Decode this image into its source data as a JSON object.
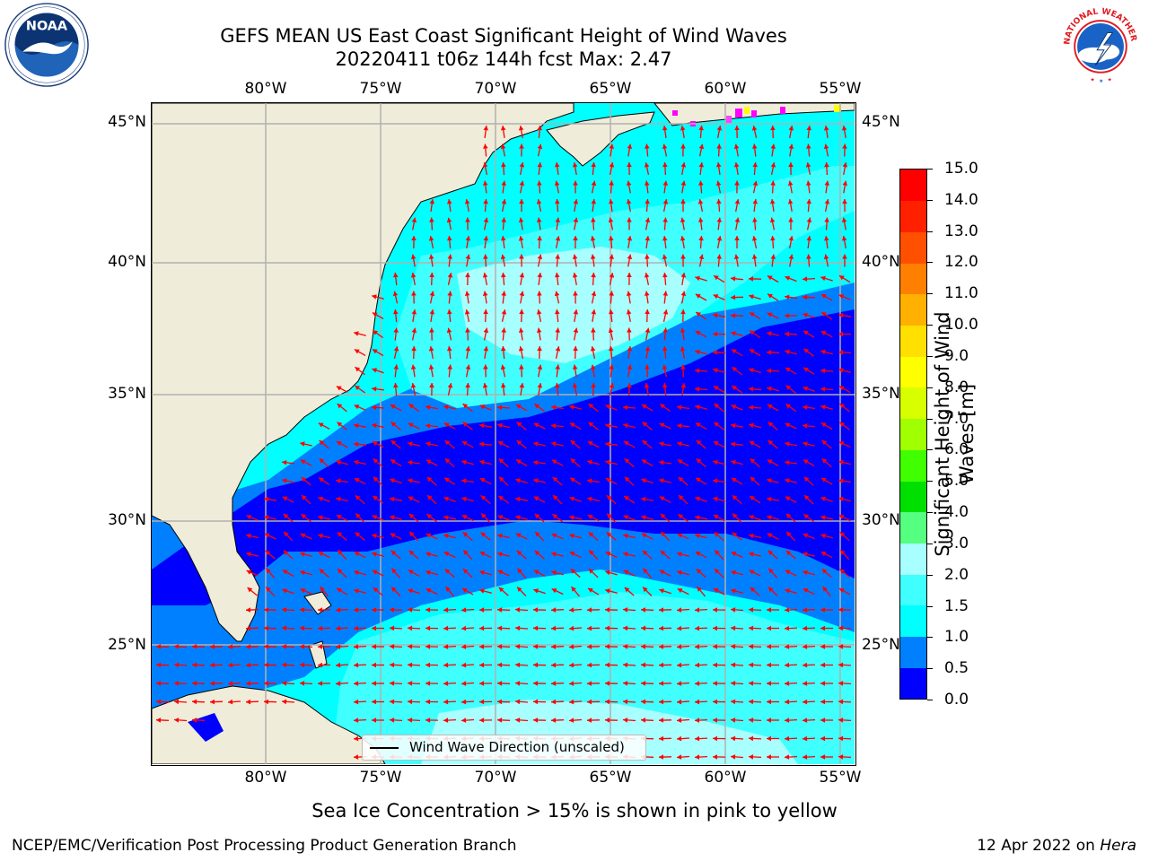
{
  "title": {
    "line1": "GEFS MEAN US East Coast Significant Height of Wind Waves",
    "line2": "20220411 t06z 144h fcst   Max: 2.47"
  },
  "map": {
    "lon_labels": [
      "80°W",
      "75°W",
      "70°W",
      "65°W",
      "60°W",
      "55°W"
    ],
    "lat_labels": [
      "45°N",
      "40°N",
      "35°N",
      "30°N",
      "25°N"
    ],
    "legend_label": "Wind Wave Direction (unscaled)",
    "colors": {
      "land": "#efedd9",
      "water_0": "#0000ff",
      "water_05": "#0080ff",
      "water_1": "#00ffff",
      "water_15": "#40ffff",
      "water_2": "#a8ffff",
      "arrow": "#ff0000",
      "grid": "#b0b0b0",
      "coast": "#000000"
    }
  },
  "colorbar": {
    "title": "Significant Height of Wind Waves [m]",
    "tick_labels": [
      "0.0",
      "0.5",
      "1.0",
      "1.5",
      "2.0",
      "3.0",
      "4.0",
      "5.0",
      "6.0",
      "7.0",
      "8.0",
      "9.0",
      "10.0",
      "11.0",
      "12.0",
      "13.0",
      "14.0",
      "15.0"
    ],
    "colors": [
      "#0000ff",
      "#0080ff",
      "#00ffff",
      "#40ffff",
      "#a8ffff",
      "#55ff80",
      "#00e000",
      "#40ff00",
      "#a0ff00",
      "#d8ff00",
      "#ffff00",
      "#ffe000",
      "#ffb000",
      "#ff8000",
      "#ff5000",
      "#ff2000",
      "#ff0000"
    ]
  },
  "ice_note": "Sea Ice Concentration > 15% is shown in pink to yellow",
  "footer": {
    "left": "NCEP/EMC/Verification Post Processing Product Generation Branch",
    "right_date": "12 Apr 2022 on ",
    "right_machine": "Hera"
  },
  "logos": {
    "left": "NOAA",
    "right": "NATIONAL WEATHER SERVICE"
  }
}
